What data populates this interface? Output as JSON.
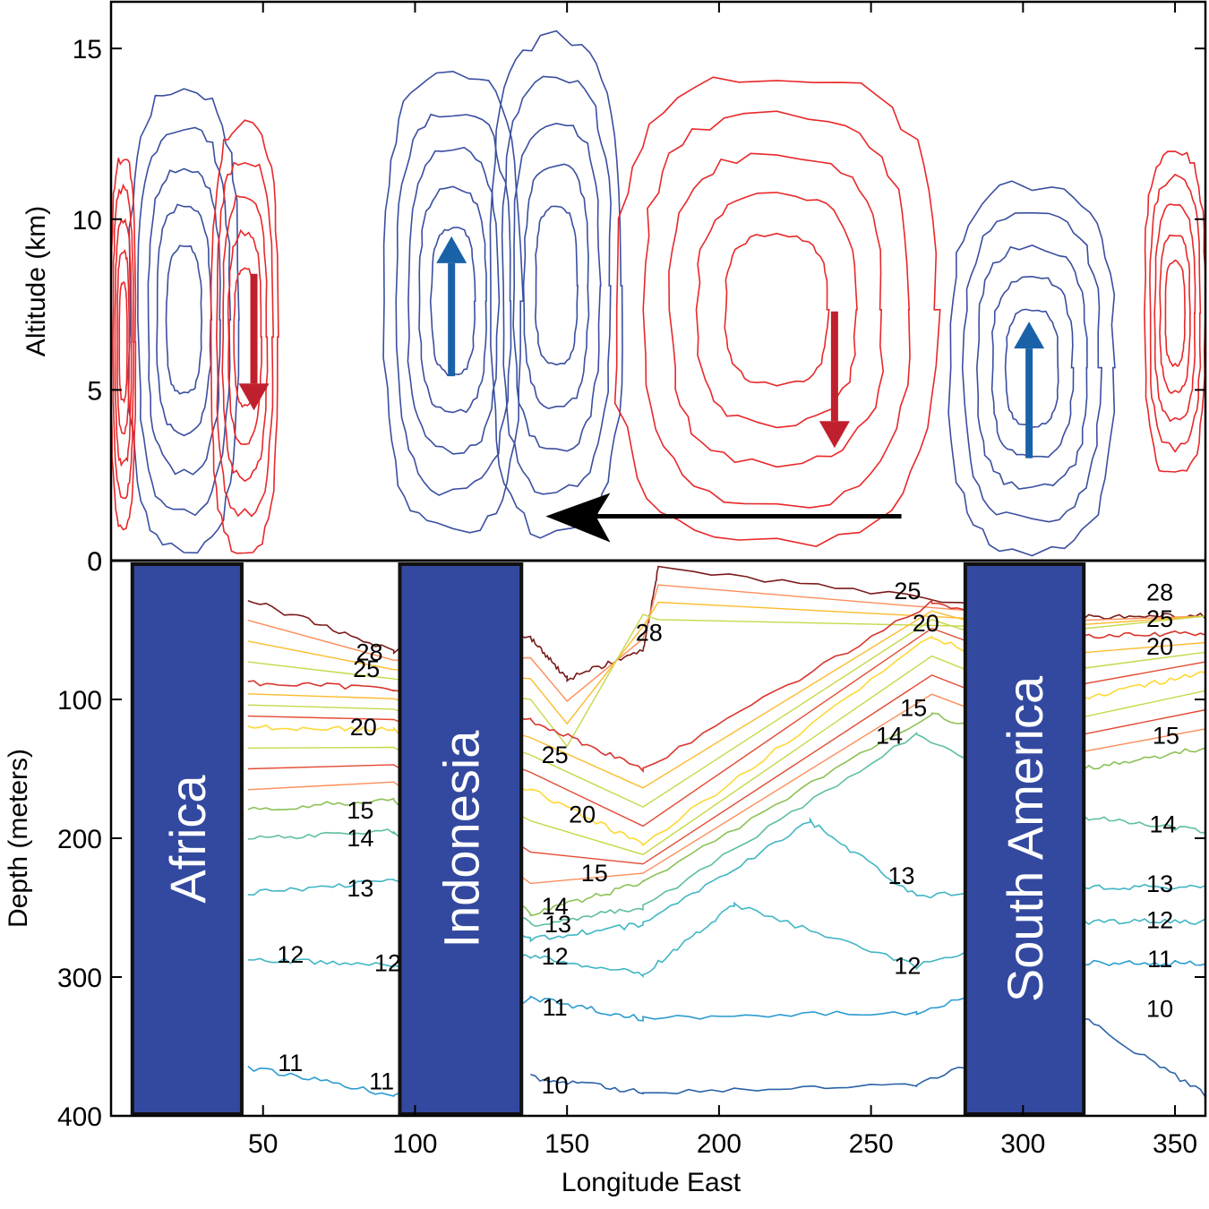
{
  "chart_data": [
    {
      "type": "line",
      "panel": "atmosphere",
      "ylabel": "Altitude (km)",
      "xlabel": "",
      "xlim": [
        0,
        360
      ],
      "ylim": [
        0,
        16
      ],
      "yticks": [
        "0",
        "5",
        "10",
        "15"
      ],
      "series": [
        {
          "color": "#3a4fa0",
          "sense": "ascending",
          "cells": [
            {
              "x": [
                6,
                42
              ],
              "y": [
                0.3,
                13.8
              ]
            },
            {
              "x": [
                90,
                135
              ],
              "y": [
                0.9,
                14.3
              ]
            },
            {
              "x": [
                125,
                168
              ],
              "y": [
                0.8,
                15.3
              ]
            },
            {
              "x": [
                276,
                330
              ],
              "y": [
                0.3,
                11.0
              ]
            }
          ]
        },
        {
          "color": "#e8282a",
          "sense": "descending",
          "cells": [
            {
              "x": [
                33,
                55
              ],
              "y": [
                0.3,
                12.8
              ]
            },
            {
              "x": [
                166,
                272
              ],
              "y": [
                0.5,
                14.2
              ]
            },
            {
              "x": [
                0,
                8
              ],
              "y": [
                1.0,
                11.8
              ]
            },
            {
              "x": [
                340,
                360
              ],
              "y": [
                2.5,
                12.0
              ]
            }
          ]
        }
      ],
      "arrows": [
        {
          "direction": "down",
          "x": 47,
          "y": [
            8.4,
            4.4
          ],
          "color": "#c0202e"
        },
        {
          "direction": "up",
          "x": 112,
          "y": [
            5.4,
            9.5
          ],
          "color": "#1a62a8"
        },
        {
          "direction": "down",
          "x": 238,
          "y": [
            7.3,
            3.3
          ],
          "color": "#c0202e"
        },
        {
          "direction": "up",
          "x": 302,
          "y": [
            3.0,
            7.0
          ],
          "color": "#1a62a8"
        },
        {
          "direction": "west",
          "x": [
            260,
            143
          ],
          "y": 1.3,
          "color": "#000000"
        }
      ]
    },
    {
      "type": "line",
      "panel": "ocean",
      "ylabel": "Depth (meters)",
      "xlabel": "Longitude East",
      "xlim": [
        0,
        360
      ],
      "ylim": [
        400,
        0
      ],
      "yticks": [
        "0",
        "100",
        "200",
        "300",
        "400"
      ],
      "xticks": [
        "50",
        "100",
        "150",
        "200",
        "250",
        "300",
        "350"
      ],
      "landmasses": [
        {
          "name": "Africa",
          "x": [
            7,
            43
          ]
        },
        {
          "name": "Indonesia",
          "x": [
            95,
            135
          ]
        },
        {
          "name": "South America",
          "x": [
            281,
            320
          ]
        }
      ],
      "isotherms": [
        {
          "temp": 28,
          "color": "#7b1a1a",
          "depth": [
            {
              "x": 45,
              "y": 28
            },
            {
              "x": 93,
              "y": 65
            },
            {
              "x": 138,
              "y": 55
            },
            {
              "x": 150,
              "y": 85
            },
            {
              "x": 175,
              "y": 65
            },
            {
              "x": 180,
              "y": 5
            },
            {
              "x": 320,
              "y": 40
            },
            {
              "x": 360,
              "y": 40
            }
          ]
        },
        {
          "temp": 25,
          "color": "#d8342c",
          "depth": [
            {
              "x": 45,
              "y": 88
            },
            {
              "x": 93,
              "y": 92
            },
            {
              "x": 138,
              "y": 115
            },
            {
              "x": 175,
              "y": 150
            },
            {
              "x": 270,
              "y": 30
            },
            {
              "x": 320,
              "y": 55
            },
            {
              "x": 360,
              "y": 52
            }
          ]
        },
        {
          "temp": 20,
          "color": "#fdd835",
          "depth": [
            {
              "x": 45,
              "y": 120
            },
            {
              "x": 93,
              "y": 122
            },
            {
              "x": 138,
              "y": 165
            },
            {
              "x": 175,
              "y": 205
            },
            {
              "x": 270,
              "y": 55
            },
            {
              "x": 320,
              "y": 100
            },
            {
              "x": 360,
              "y": 80
            }
          ]
        },
        {
          "temp": 15,
          "color": "#8cc157",
          "depth": [
            {
              "x": 45,
              "y": 180
            },
            {
              "x": 93,
              "y": 172
            },
            {
              "x": 138,
              "y": 255
            },
            {
              "x": 175,
              "y": 232
            },
            {
              "x": 270,
              "y": 110
            },
            {
              "x": 320,
              "y": 150
            },
            {
              "x": 360,
              "y": 135
            }
          ]
        },
        {
          "temp": 14,
          "color": "#5ebfa0",
          "depth": [
            {
              "x": 45,
              "y": 200
            },
            {
              "x": 93,
              "y": 195
            },
            {
              "x": 138,
              "y": 262
            },
            {
              "x": 175,
              "y": 250
            },
            {
              "x": 265,
              "y": 125
            },
            {
              "x": 320,
              "y": 185
            },
            {
              "x": 360,
              "y": 195
            }
          ]
        },
        {
          "temp": 13,
          "color": "#41b6c4",
          "depth": [
            {
              "x": 45,
              "y": 240
            },
            {
              "x": 93,
              "y": 230
            },
            {
              "x": 138,
              "y": 273
            },
            {
              "x": 175,
              "y": 262
            },
            {
              "x": 230,
              "y": 188
            },
            {
              "x": 265,
              "y": 242
            },
            {
              "x": 320,
              "y": 235
            },
            {
              "x": 360,
              "y": 235
            }
          ]
        },
        {
          "temp": 12,
          "color": "#41b6c4",
          "depth": [
            {
              "x": 45,
              "y": 287
            },
            {
              "x": 93,
              "y": 292
            },
            {
              "x": 138,
              "y": 285
            },
            {
              "x": 175,
              "y": 298
            },
            {
              "x": 205,
              "y": 248
            },
            {
              "x": 265,
              "y": 292
            },
            {
              "x": 320,
              "y": 260
            },
            {
              "x": 360,
              "y": 260
            }
          ]
        },
        {
          "temp": 11,
          "color": "#2b9bd0",
          "depth": [
            {
              "x": 45,
              "y": 365
            },
            {
              "x": 93,
              "y": 385
            },
            {
              "x": 138,
              "y": 315
            },
            {
              "x": 175,
              "y": 330
            },
            {
              "x": 265,
              "y": 325
            },
            {
              "x": 320,
              "y": 290
            },
            {
              "x": 360,
              "y": 290
            }
          ]
        },
        {
          "temp": 10,
          "color": "#2b62a8",
          "depth": [
            {
              "x": 138,
              "y": 372
            },
            {
              "x": 175,
              "y": 383
            },
            {
              "x": 265,
              "y": 378
            },
            {
              "x": 320,
              "y": 330
            },
            {
              "x": 360,
              "y": 385
            }
          ]
        }
      ],
      "contour_labels": [
        {
          "text": "28",
          "x": 85,
          "y": 66
        },
        {
          "text": "25",
          "x": 84,
          "y": 78
        },
        {
          "text": "20",
          "x": 83,
          "y": 120
        },
        {
          "text": "15",
          "x": 82,
          "y": 180
        },
        {
          "text": "14",
          "x": 82,
          "y": 200
        },
        {
          "text": "13",
          "x": 82,
          "y": 236
        },
        {
          "text": "12",
          "x": 59,
          "y": 284
        },
        {
          "text": "12",
          "x": 91,
          "y": 290
        },
        {
          "text": "11",
          "x": 59,
          "y": 362
        },
        {
          "text": "11",
          "x": 89,
          "y": 375
        },
        {
          "text": "28",
          "x": 177,
          "y": 52
        },
        {
          "text": "25",
          "x": 146,
          "y": 140
        },
        {
          "text": "20",
          "x": 155,
          "y": 183
        },
        {
          "text": "15",
          "x": 159,
          "y": 225
        },
        {
          "text": "14",
          "x": 146,
          "y": 249
        },
        {
          "text": "13",
          "x": 147,
          "y": 262
        },
        {
          "text": "12",
          "x": 146,
          "y": 285
        },
        {
          "text": "11",
          "x": 146,
          "y": 322
        },
        {
          "text": "10",
          "x": 146,
          "y": 378
        },
        {
          "text": "25",
          "x": 262,
          "y": 22
        },
        {
          "text": "20",
          "x": 268,
          "y": 45
        },
        {
          "text": "15",
          "x": 264,
          "y": 106
        },
        {
          "text": "14",
          "x": 256,
          "y": 126
        },
        {
          "text": "13",
          "x": 260,
          "y": 227
        },
        {
          "text": "12",
          "x": 262,
          "y": 292
        },
        {
          "text": "28",
          "x": 345,
          "y": 23
        },
        {
          "text": "25",
          "x": 345,
          "y": 42
        },
        {
          "text": "20",
          "x": 345,
          "y": 62
        },
        {
          "text": "15",
          "x": 347,
          "y": 126
        },
        {
          "text": "14",
          "x": 346,
          "y": 190
        },
        {
          "text": "13",
          "x": 345,
          "y": 233
        },
        {
          "text": "12",
          "x": 345,
          "y": 259
        },
        {
          "text": "11",
          "x": 345,
          "y": 287
        },
        {
          "text": "10",
          "x": 345,
          "y": 323
        }
      ]
    }
  ]
}
